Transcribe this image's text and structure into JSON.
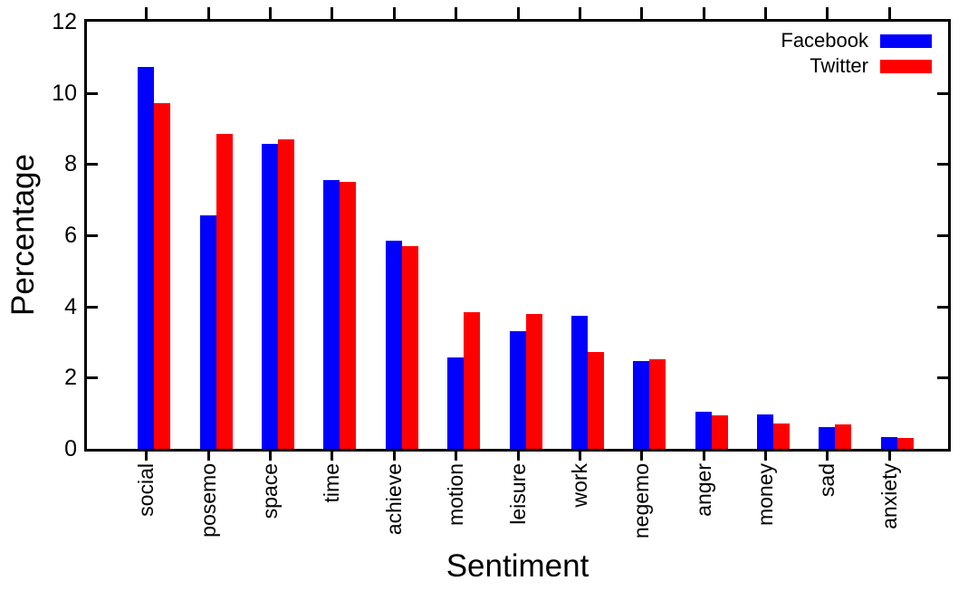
{
  "chart_data": {
    "type": "bar",
    "title": "",
    "xlabel": "Sentiment",
    "ylabel": "Percentage",
    "ylim": [
      0,
      12
    ],
    "yticks": [
      0,
      2,
      4,
      6,
      8,
      10,
      12
    ],
    "grid": false,
    "legend_position": "top-right-inside",
    "categories": [
      "social",
      "posemo",
      "space",
      "time",
      "achieve",
      "motion",
      "leisure",
      "work",
      "negemo",
      "anger",
      "money",
      "sad",
      "anxiety"
    ],
    "series": [
      {
        "name": "Facebook",
        "color": "#0000ff",
        "values": [
          10.73,
          6.55,
          8.57,
          7.56,
          5.85,
          2.58,
          3.3,
          3.74,
          2.46,
          1.04,
          0.97,
          0.62,
          0.34
        ]
      },
      {
        "name": "Twitter",
        "color": "#ff0000",
        "values": [
          9.7,
          8.85,
          8.7,
          7.5,
          5.7,
          3.84,
          3.79,
          2.71,
          2.51,
          0.95,
          0.7,
          0.69,
          0.3
        ]
      }
    ]
  }
}
